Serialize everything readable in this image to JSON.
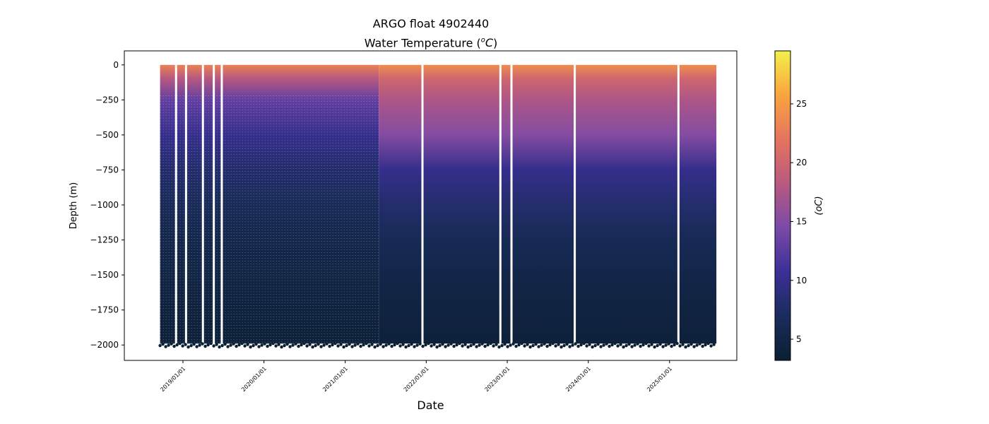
{
  "chart_data": {
    "type": "heatmap",
    "title_line1": "ARGO float 4902440",
    "title_line2_prefix": "Water Temperature (",
    "title_unit_base": "o",
    "title_unit_letter": "C",
    "title_line2_suffix": ")",
    "xlabel": "Date",
    "ylabel": "Depth (m)",
    "colorbar_label": "(oC)",
    "x_ticks": [
      "2019/01/01",
      "2020/01/01",
      "2021/01/01",
      "2022/01/01",
      "2023/01/01",
      "2024/01/01",
      "2025/01/01"
    ],
    "xlim": [
      "2018/04/12",
      "2025/10/31"
    ],
    "data_x_range": [
      "2018/09/20",
      "2025/07/31"
    ],
    "y_ticks": [
      0,
      -250,
      -500,
      -750,
      -1000,
      -1250,
      -1500,
      -1750,
      -2000
    ],
    "ylim": [
      -2110,
      100
    ],
    "colorbar_ticks": [
      5,
      10,
      15,
      20,
      25
    ],
    "colorbar_range": [
      3.2,
      29.5
    ],
    "colormap": [
      "#0b1f33",
      "#1a2c5c",
      "#3b2f96",
      "#7b4aa8",
      "#b9597f",
      "#e5745f",
      "#f9a43f",
      "#f3f04a"
    ],
    "temperature_profile": {
      "depths": [
        0,
        -100,
        -250,
        -500,
        -750,
        -1000,
        -1250,
        -1500,
        -1750,
        -2000
      ],
      "surface_era_early": [
        23,
        18,
        13,
        10,
        8,
        6.5,
        5.5,
        4.8,
        4.2,
        3.8
      ],
      "surface_era_late": [
        24,
        20,
        17.5,
        15,
        10,
        8,
        6.3,
        5.2,
        4.4,
        3.9
      ]
    },
    "gaps": [
      "2018/12/01",
      "2019/01/15",
      "2019/04/01",
      "2019/05/20",
      "2019/06/25",
      "2021/12/15",
      "2022/12/01",
      "2023/01/20",
      "2023/11/01",
      "2025/02/10"
    ],
    "profile_bottom_depth": -1990,
    "grid": false,
    "legend": "colorbar-right"
  }
}
